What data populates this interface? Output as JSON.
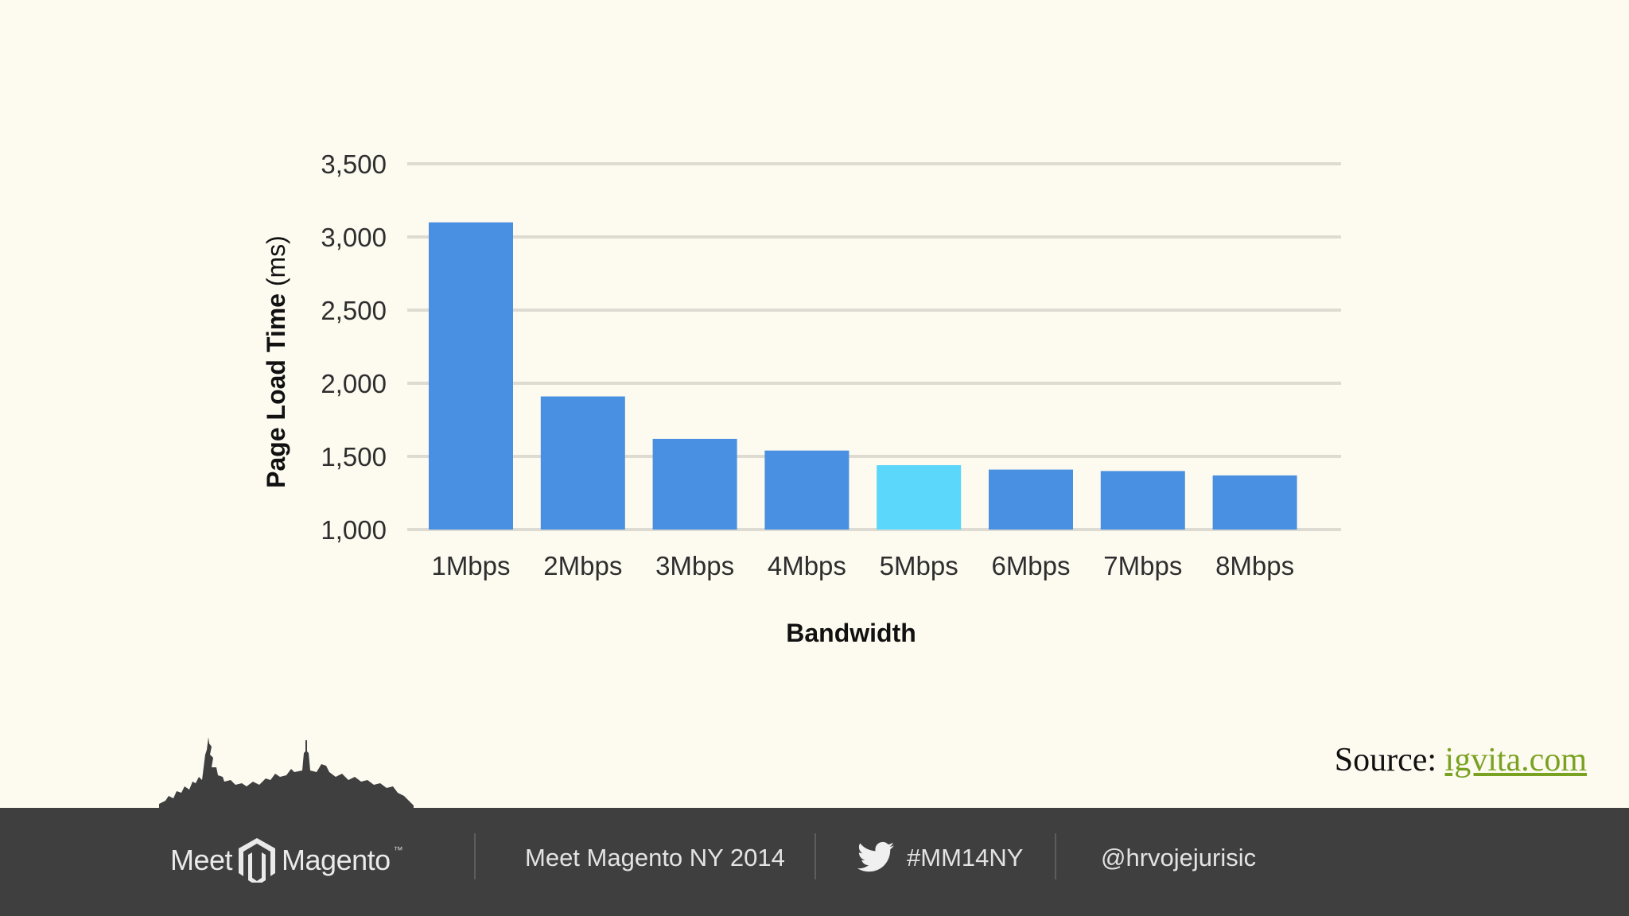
{
  "chart_data": {
    "type": "bar",
    "title": "",
    "xlabel": "Bandwidth",
    "ylabel_bold": "Page Load Time",
    "ylabel_unit": " (ms)",
    "categories": [
      "1Mbps",
      "2Mbps",
      "3Mbps",
      "4Mbps",
      "5Mbps",
      "6Mbps",
      "7Mbps",
      "8Mbps"
    ],
    "values": [
      3100,
      1910,
      1620,
      1540,
      1440,
      1410,
      1400,
      1370
    ],
    "ylim": [
      1000,
      3500
    ],
    "yticks": [
      "1,000",
      "1,500",
      "2,000",
      "2,500",
      "3,000",
      "3,500"
    ],
    "grid": true,
    "bar_color": "#4a90e2",
    "highlight_color": "#5ad7fa",
    "highlight_category": "5Mbps"
  },
  "source": {
    "label": "Source:",
    "link_text": "igvita.com"
  },
  "footer": {
    "logo_word_1": "Meet",
    "logo_word_2": "Magento",
    "logo_mark": "™",
    "event": "Meet Magento NY 2014",
    "hashtag": "#MM14NY",
    "handle": "@hrvojejurisic",
    "background": "#3f3f3f"
  }
}
